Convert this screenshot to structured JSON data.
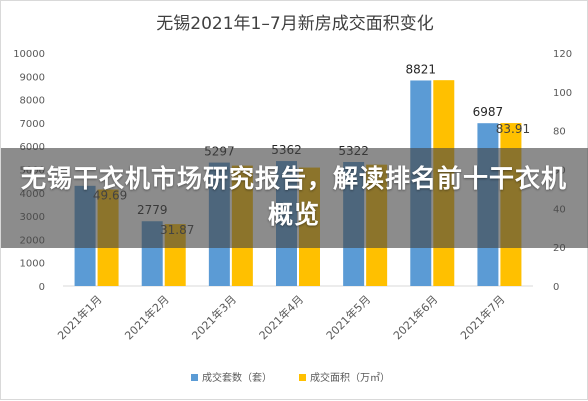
{
  "overlay": {
    "headline": "无锡干衣机市场研究报告，解读排名前十干衣机概览"
  },
  "chart_data": {
    "type": "bar",
    "title": "无锡2021年1–7月新房成交面积变化",
    "categories": [
      "2021年1月",
      "2021年2月",
      "2021年3月",
      "2021年4月",
      "2021年5月",
      "2021年6月",
      "2021年7月"
    ],
    "series": [
      {
        "name": "成交套数（套）",
        "axis": "left",
        "color": "#5b9bd5",
        "values": [
          4300,
          2779,
          5297,
          5362,
          5322,
          8821,
          6987
        ],
        "labels": [
          "",
          "2779",
          "5297",
          "5362",
          "5322",
          "8821",
          "6987"
        ]
      },
      {
        "name": "成交面积（万㎡）",
        "axis": "right",
        "color": "#ffc000",
        "values": [
          49.69,
          31.87,
          62,
          61,
          62.5,
          106,
          83.91
        ],
        "labels": [
          "49.69",
          "31.87",
          "",
          "",
          "",
          "",
          "83.91"
        ]
      }
    ],
    "y_left": {
      "min": 0,
      "max": 10000,
      "ticks": [
        0,
        1000,
        2000,
        3000,
        4000,
        5000,
        6000,
        7000,
        8000,
        9000,
        10000
      ]
    },
    "y_right": {
      "min": 0,
      "max": 120,
      "ticks": [
        0,
        20,
        40,
        60,
        80,
        100,
        120
      ]
    },
    "grid": false,
    "legend_position": "bottom",
    "colors": {
      "bar_primary": "#5b9bd5",
      "bar_secondary": "#ffc000",
      "axis_text": "#595959"
    }
  }
}
